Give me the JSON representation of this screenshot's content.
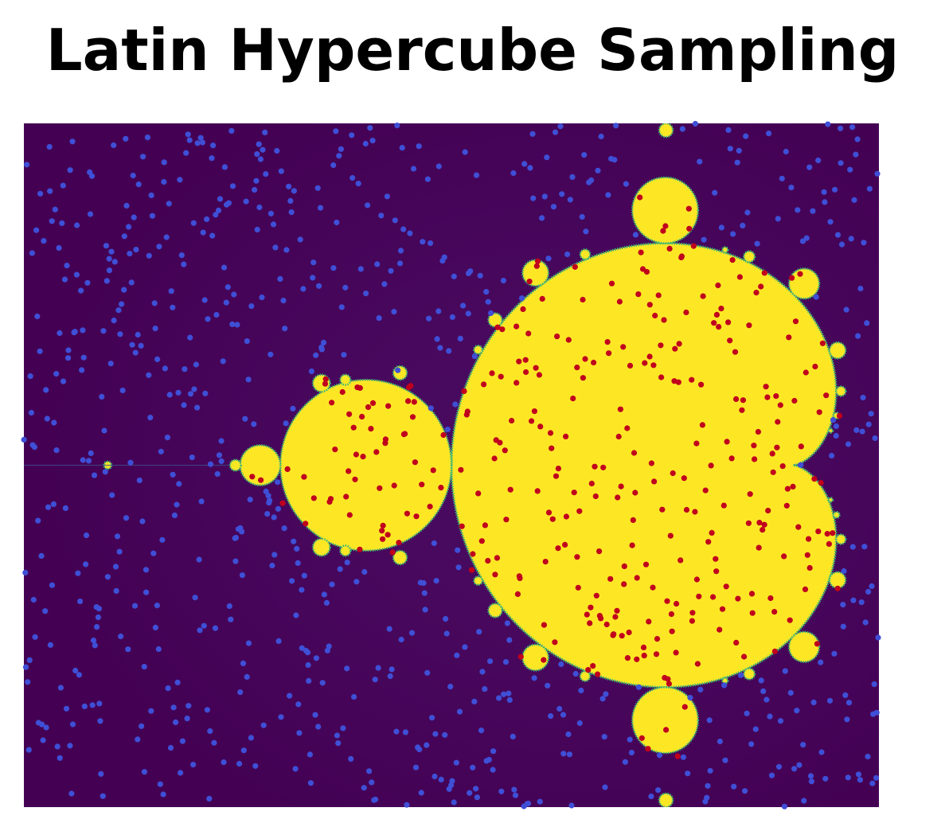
{
  "title": "Latin Hypercube Sampling",
  "colors": {
    "background": "#440154",
    "background_outer": "#3b0f57",
    "set_fill": "#fde725",
    "set_edge": "#35b779",
    "outside_point": "#3f4fd6",
    "inside_point": "#c0001c"
  },
  "chart_data": {
    "type": "scatter",
    "title": "Latin Hypercube Sampling",
    "xlim": [
      -2.0,
      0.5
    ],
    "ylim": [
      -1.0,
      1.0
    ],
    "axes_visible": false,
    "grid": false,
    "background_image": "Mandelbrot set (viridis colormap)",
    "sampling": "Latin Hypercube",
    "n_samples": 1000,
    "series": [
      {
        "color": "#c0001c",
        "category": "inside set",
        "approx_count": 300
      },
      {
        "color": "#3f4fd6",
        "category": "outside set",
        "approx_count": 700
      }
    ]
  }
}
